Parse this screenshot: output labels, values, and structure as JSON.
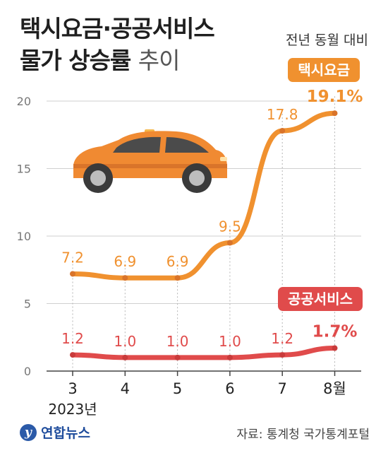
{
  "header": {
    "title_line1": "택시요금·공공서비스",
    "title_line2_bold": "물가 상승률",
    "title_line2_light": "추이",
    "subtitle": "전년 동월 대비"
  },
  "badges": {
    "taxi": "택시요금",
    "public": "공공서비스"
  },
  "footer": {
    "logo_text": "연합뉴스",
    "source": "자료: 통계청 국가통계포털"
  },
  "colors": {
    "taxi": "#f0912f",
    "public": "#e04b4b",
    "grid": "#cfcfcf",
    "axis": "#555555"
  },
  "chart_data": {
    "type": "line",
    "categories": [
      "3",
      "4",
      "5",
      "6",
      "7",
      "8월"
    ],
    "year_label": "2023년",
    "yticks": [
      0,
      5,
      10,
      15,
      20
    ],
    "ylim": [
      0,
      21
    ],
    "series": [
      {
        "name": "택시요금",
        "values": [
          7.2,
          6.9,
          6.9,
          9.5,
          17.8,
          19.1
        ],
        "labels": [
          "7.2",
          "6.9",
          "6.9",
          "9.5",
          "17.8",
          "19.1%"
        ]
      },
      {
        "name": "공공서비스",
        "values": [
          1.2,
          1.0,
          1.0,
          1.0,
          1.2,
          1.7
        ],
        "labels": [
          "1.2",
          "1.0",
          "1.0",
          "1.0",
          "1.2",
          "1.7%"
        ]
      }
    ]
  }
}
